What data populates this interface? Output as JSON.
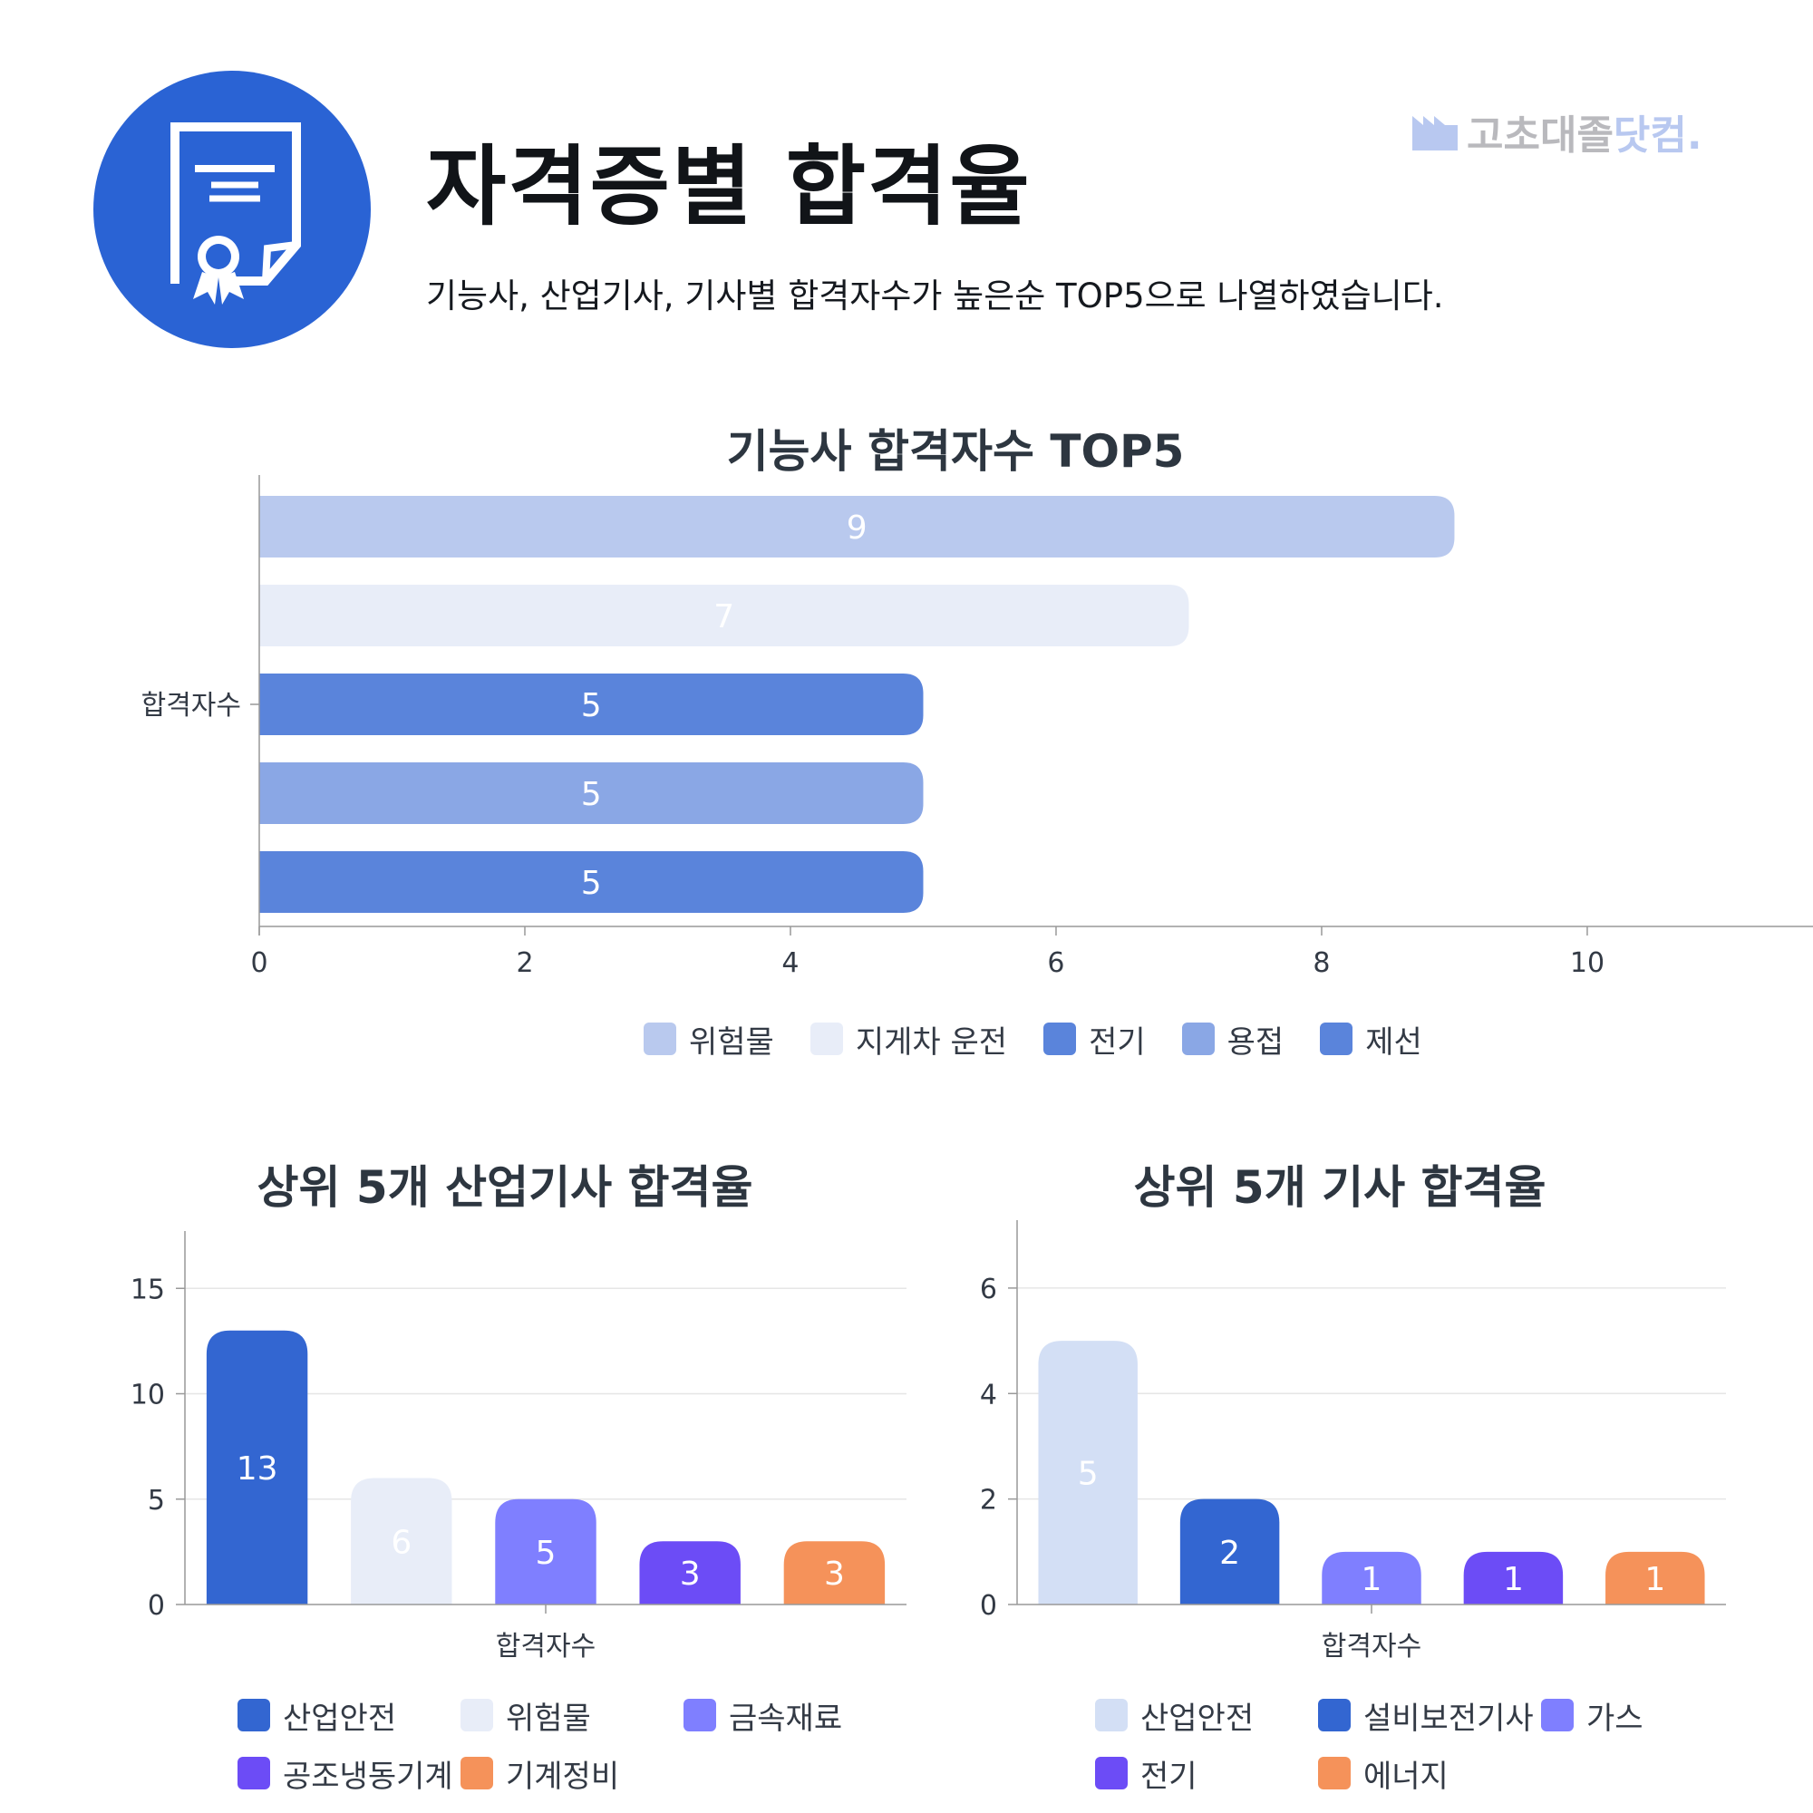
{
  "header": {
    "icon": "certificate-icon",
    "title": "자격증별 합격율",
    "subtitle": "기능사, 산업기사, 기사별 합격자수가 높은순 TOP5으로 나열하였습니다.",
    "brand": {
      "icon": "factory-icon",
      "name": "고초대졸",
      "accent": "닷컴."
    }
  },
  "chart_data": [
    {
      "type": "bar",
      "orientation": "horizontal",
      "title": "기능사 합격자수 TOP5",
      "categories": [
        "합격자수"
      ],
      "series": [
        {
          "name": "위험물",
          "values": [
            9
          ],
          "color": "#b9c9ee"
        },
        {
          "name": "지게차 운전",
          "values": [
            7
          ],
          "color": "#e8edf8"
        },
        {
          "name": "전기",
          "values": [
            5
          ],
          "color": "#5a84db"
        },
        {
          "name": "용접",
          "values": [
            5
          ],
          "color": "#8aa7e5"
        },
        {
          "name": "제선",
          "values": [
            5
          ],
          "color": "#5a84db"
        }
      ],
      "xlim": [
        0,
        11.7
      ],
      "xticks": [
        0,
        2,
        4,
        6,
        8,
        10
      ],
      "legend": "bottom",
      "grid": false
    },
    {
      "type": "bar",
      "title": "상위 5개 산업기사 합격율",
      "categories": [
        "합격자수"
      ],
      "series": [
        {
          "name": "산업안전",
          "values": [
            13
          ],
          "color": "#3366d1"
        },
        {
          "name": "위험물",
          "values": [
            6
          ],
          "color": "#e8edf8"
        },
        {
          "name": "금속재료",
          "values": [
            5
          ],
          "color": "#7f7fff"
        },
        {
          "name": "공조냉동기계",
          "values": [
            3
          ],
          "color": "#6c4cf6"
        },
        {
          "name": "기계정비",
          "values": [
            3
          ],
          "color": "#f5925a"
        }
      ],
      "ylim": [
        0,
        16
      ],
      "yticks": [
        0,
        5,
        10,
        15
      ],
      "legend": "bottom",
      "grid": true
    },
    {
      "type": "bar",
      "title": "상위 5개 기사 합격율",
      "categories": [
        "합격자수"
      ],
      "series": [
        {
          "name": "산업안전",
          "values": [
            5
          ],
          "color": "#d3dff5"
        },
        {
          "name": "설비보전기사",
          "values": [
            2
          ],
          "color": "#3366d1"
        },
        {
          "name": "가스",
          "values": [
            1
          ],
          "color": "#7f7fff"
        },
        {
          "name": "전기",
          "values": [
            1
          ],
          "color": "#6c4cf6"
        },
        {
          "name": "에너지",
          "values": [
            1
          ],
          "color": "#f5925a"
        }
      ],
      "ylim": [
        0,
        6.6
      ],
      "yticks": [
        0,
        2,
        4,
        6
      ],
      "legend": "bottom",
      "grid": true
    }
  ]
}
